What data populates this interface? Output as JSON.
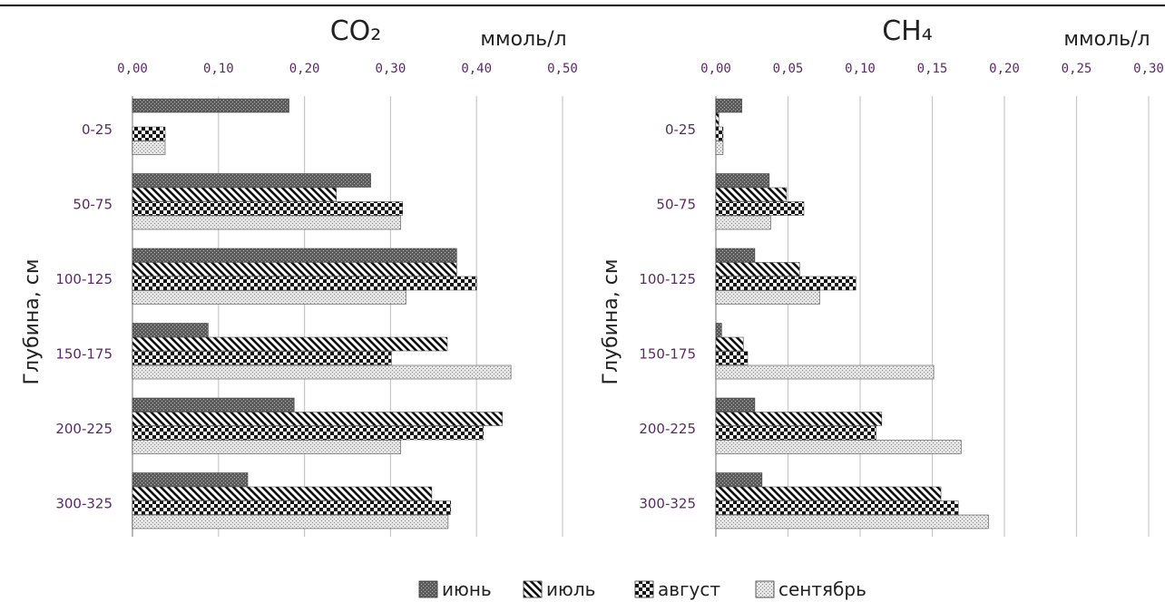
{
  "chart_data": [
    {
      "type": "bar",
      "orientation": "horizontal",
      "title": "CO₂",
      "unit": "ммоль/л",
      "ylabel": "Глубина, см",
      "categories": [
        "0-25",
        "50-75",
        "100-125",
        "150-175",
        "200-225",
        "300-325"
      ],
      "ticks": [
        "0,00",
        "0,10",
        "0,20",
        "0,30",
        "0,40",
        "0,50"
      ],
      "xlim": [
        0,
        0.5
      ],
      "grid": true,
      "series": [
        {
          "name": "июнь",
          "values": [
            0.182,
            0.277,
            0.377,
            0.088,
            0.188,
            0.134
          ]
        },
        {
          "name": "июль",
          "values": [
            0.0,
            0.237,
            0.377,
            0.366,
            0.43,
            0.348
          ]
        },
        {
          "name": "август",
          "values": [
            0.038,
            0.314,
            0.4,
            0.301,
            0.408,
            0.37
          ]
        },
        {
          "name": "сентябрь",
          "values": [
            0.038,
            0.312,
            0.318,
            0.44,
            0.312,
            0.367
          ]
        }
      ]
    },
    {
      "type": "bar",
      "orientation": "horizontal",
      "title": "CH₄",
      "unit": "ммоль/л",
      "ylabel": "Глубина, см",
      "categories": [
        "0-25",
        "50-75",
        "100-125",
        "150-175",
        "200-225",
        "300-325"
      ],
      "ticks": [
        "0,00",
        "0,05",
        "0,10",
        "0,15",
        "0,20",
        "0,25",
        "0,30"
      ],
      "xlim": [
        0,
        0.3
      ],
      "grid": true,
      "series": [
        {
          "name": "июнь",
          "values": [
            0.018,
            0.037,
            0.027,
            0.004,
            0.027,
            0.032
          ]
        },
        {
          "name": "июль",
          "values": [
            0.002,
            0.049,
            0.058,
            0.019,
            0.115,
            0.156
          ]
        },
        {
          "name": "август",
          "values": [
            0.005,
            0.061,
            0.097,
            0.022,
            0.111,
            0.168
          ]
        },
        {
          "name": "сентябрь",
          "values": [
            0.005,
            0.038,
            0.072,
            0.151,
            0.17,
            0.189
          ]
        }
      ]
    }
  ],
  "legend": {
    "placement": "bottom",
    "items": [
      "июнь",
      "июль",
      "август",
      "сентябрь"
    ],
    "patterns": [
      "dark-dots",
      "diagonal-stripes",
      "checker",
      "light-dots"
    ]
  }
}
